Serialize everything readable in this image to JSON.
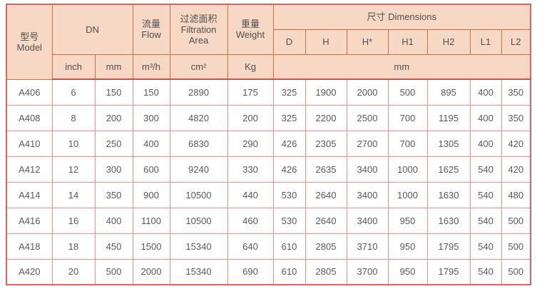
{
  "table": {
    "title": "filter-model-specification-table",
    "header": {
      "model": [
        "型号",
        "Model"
      ],
      "dn": "DN",
      "flow": [
        "流量",
        "Flow"
      ],
      "filtration_area": [
        "过滤面积",
        "Filtration",
        "Area"
      ],
      "weight": [
        "重量",
        "Weight"
      ],
      "dimensions": "尺寸 Dimensions",
      "dim_cols": [
        "D",
        "H",
        "H*",
        "H1",
        "H2",
        "L1",
        "L2"
      ],
      "units": [
        "inch",
        "mm",
        "m³/h",
        "cm²",
        "Kg",
        "mm"
      ]
    },
    "rows": [
      [
        "A406",
        "6",
        "150",
        "150",
        "2890",
        "175",
        "325",
        "1900",
        "2000",
        "500",
        "895",
        "400",
        "350"
      ],
      [
        "A408",
        "8",
        "200",
        "300",
        "4820",
        "200",
        "325",
        "2200",
        "2500",
        "700",
        "1195",
        "400",
        "350"
      ],
      [
        "A410",
        "10",
        "250",
        "400",
        "6830",
        "290",
        "426",
        "2305",
        "2700",
        "700",
        "1305",
        "400",
        "420"
      ],
      [
        "A412",
        "12",
        "300",
        "600",
        "9240",
        "330",
        "426",
        "2635",
        "3400",
        "1000",
        "1625",
        "540",
        "420"
      ],
      [
        "A414",
        "14",
        "350",
        "900",
        "10500",
        "440",
        "530",
        "2640",
        "3400",
        "1000",
        "1630",
        "540",
        "480"
      ],
      [
        "A416",
        "16",
        "400",
        "1100",
        "10500",
        "460",
        "530",
        "2640",
        "3400",
        "950",
        "1630",
        "540",
        "500"
      ],
      [
        "A418",
        "18",
        "450",
        "1500",
        "15340",
        "640",
        "610",
        "2805",
        "3710",
        "950",
        "1795",
        "540",
        "500"
      ],
      [
        "A420",
        "20",
        "500",
        "2000",
        "15340",
        "690",
        "610",
        "2805",
        "3700",
        "950",
        "1795",
        "540",
        "500"
      ]
    ],
    "colors": {
      "header_background": "#f6d8c5",
      "header_border": "#dd6a43",
      "grid_border": "#ec9189",
      "outer_border": "#d9665e",
      "text": "#595959"
    }
  }
}
